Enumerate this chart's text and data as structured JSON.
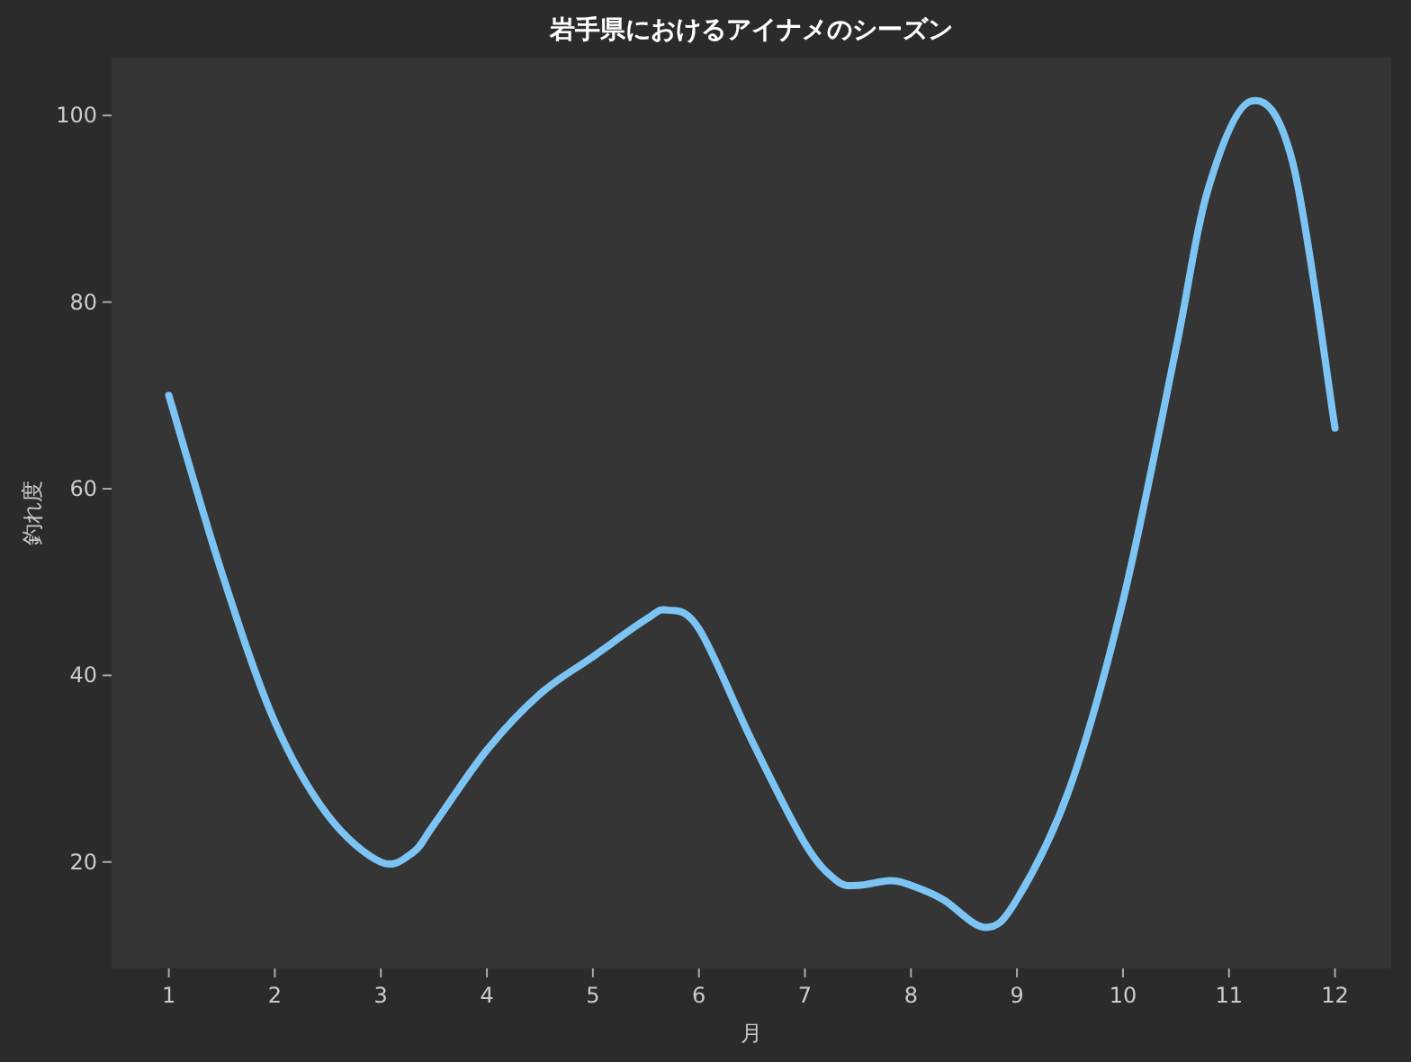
{
  "chart_data": {
    "type": "line",
    "title": "岩手県におけるアイナメのシーズン",
    "xlabel": "月",
    "ylabel": "釣れ度",
    "series": [
      {
        "color": "#7cc4f4",
        "x": [
          1,
          1.5,
          2,
          2.5,
          3,
          3.3,
          3.5,
          4,
          4.5,
          5,
          5.5,
          5.7,
          6,
          6.5,
          7,
          7.3,
          7.5,
          7.8,
          8,
          8.3,
          8.7,
          9,
          9.5,
          10,
          10.5,
          10.8,
          11.2,
          11.6,
          12
        ],
        "values": [
          70,
          51,
          35,
          25,
          20,
          21,
          24,
          32,
          38,
          42,
          46,
          47,
          45,
          33,
          22,
          18,
          17.5,
          18,
          17.5,
          16,
          13,
          16,
          28,
          48,
          75,
          92,
          101.5,
          95,
          66.5
        ]
      }
    ],
    "xlim": [
      0.46,
      12.53
    ],
    "ylim": [
      8.6,
      106.2
    ],
    "xticks": [
      1,
      2,
      3,
      4,
      5,
      6,
      7,
      8,
      9,
      10,
      11,
      12
    ],
    "yticks": [
      20,
      40,
      60,
      80,
      100
    ],
    "grid": false,
    "marker": "none",
    "line_style": "solid"
  }
}
